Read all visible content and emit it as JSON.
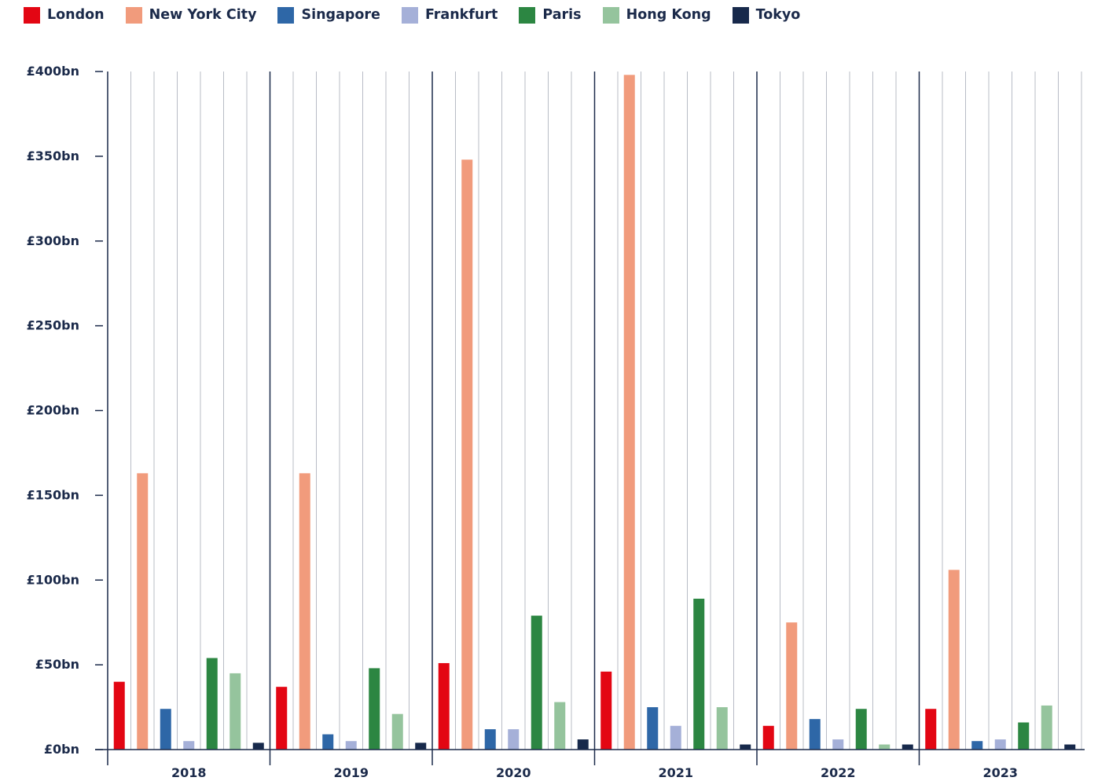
{
  "chart_data": {
    "type": "bar",
    "categories": [
      "2018",
      "2019",
      "2020",
      "2021",
      "2022",
      "2023"
    ],
    "series": [
      {
        "name": "London",
        "color": "#e30613",
        "values": [
          40,
          37,
          51,
          46,
          14,
          24
        ]
      },
      {
        "name": "New York City",
        "color": "#f19b7c",
        "values": [
          163,
          163,
          348,
          398,
          75,
          106
        ]
      },
      {
        "name": "Singapore",
        "color": "#2e67a7",
        "values": [
          24,
          9,
          12,
          25,
          18,
          5
        ]
      },
      {
        "name": "Frankfurt",
        "color": "#a5b0d8",
        "values": [
          5,
          5,
          12,
          14,
          6,
          6
        ]
      },
      {
        "name": "Paris",
        "color": "#2c8642",
        "values": [
          54,
          48,
          79,
          89,
          24,
          16
        ]
      },
      {
        "name": "Hong Kong",
        "color": "#95c49d",
        "values": [
          45,
          21,
          28,
          25,
          3,
          26
        ]
      },
      {
        "name": "Tokyo",
        "color": "#17294b",
        "values": [
          4,
          4,
          6,
          3,
          3,
          3
        ]
      }
    ],
    "ylim": [
      0,
      400
    ],
    "yticks": [
      0,
      50,
      100,
      150,
      200,
      250,
      300,
      350,
      400
    ],
    "ytick_labels": [
      "£0bn",
      "£50bn",
      "£100bn",
      "£150bn",
      "£200bn",
      "£250bn",
      "£300bn",
      "£350bn",
      "£400bn"
    ],
    "grid": true,
    "legend_position": "top-left",
    "axis_color": "#1b2a4a",
    "grid_color": "#b8bcc6"
  }
}
